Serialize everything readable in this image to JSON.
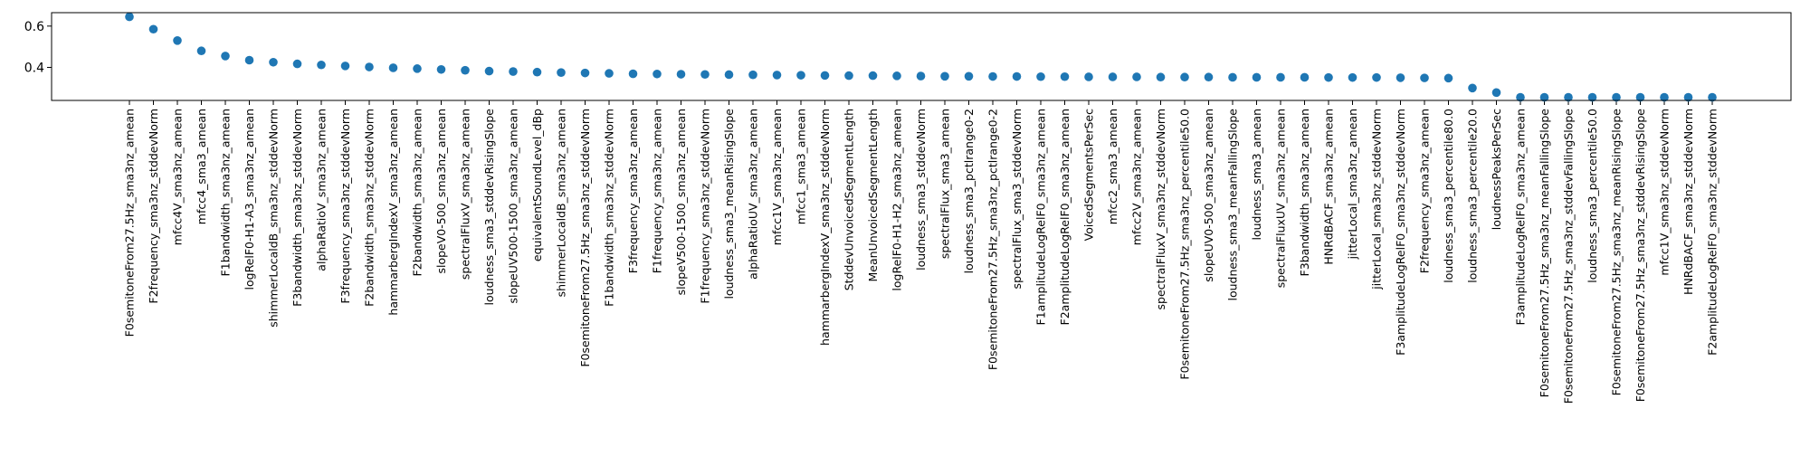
{
  "chart_data": {
    "type": "scatter",
    "title": "",
    "xlabel": "",
    "ylabel": "",
    "grid": false,
    "legend": "none",
    "ylim": [
      0.24,
      0.665
    ],
    "yticks": [
      0.4,
      0.6
    ],
    "ytick_labels": [
      "0.4",
      "0.6"
    ],
    "marker_color": "#1f77b4",
    "categories": [
      "F0semitoneFrom27.5Hz_sma3nz_amean",
      "F2frequency_sma3nz_stddevNorm",
      "mfcc4V_sma3nz_amean",
      "mfcc4_sma3_amean",
      "F1bandwidth_sma3nz_amean",
      "logRelF0-H1-A3_sma3nz_amean",
      "shimmerLocaldB_sma3nz_stddevNorm",
      "F3bandwidth_sma3nz_stddevNorm",
      "alphaRatioV_sma3nz_amean",
      "F3frequency_sma3nz_stddevNorm",
      "F2bandwidth_sma3nz_stddevNorm",
      "hammarbergIndexV_sma3nz_amean",
      "F2bandwidth_sma3nz_amean",
      "slopeV0-500_sma3nz_amean",
      "spectralFluxV_sma3nz_amean",
      "loudness_sma3_stddevRisingSlope",
      "slopeUV500-1500_sma3nz_amean",
      "equivalentSoundLevel_dBp",
      "shimmerLocaldB_sma3nz_amean",
      "F0semitoneFrom27.5Hz_sma3nz_stddevNorm",
      "F1bandwidth_sma3nz_stddevNorm",
      "F3frequency_sma3nz_amean",
      "F1frequency_sma3nz_amean",
      "slopeV500-1500_sma3nz_amean",
      "F1frequency_sma3nz_stddevNorm",
      "loudness_sma3_meanRisingSlope",
      "alphaRatioUV_sma3nz_amean",
      "mfcc1V_sma3nz_amean",
      "mfcc1_sma3_amean",
      "hammarbergIndexV_sma3nz_stddevNorm",
      "StddevUnvoicedSegmentLength",
      "MeanUnvoicedSegmentLength",
      "logRelF0-H1-H2_sma3nz_amean",
      "loudness_sma3_stddevNorm",
      "spectralFlux_sma3_amean",
      "loudness_sma3_pctlrange0-2",
      "F0semitoneFrom27.5Hz_sma3nz_pctlrange0-2",
      "spectralFlux_sma3_stddevNorm",
      "F1amplitudeLogRelF0_sma3nz_amean",
      "F2amplitudeLogRelF0_sma3nz_amean",
      "VoicedSegmentsPerSec",
      "mfcc2_sma3_amean",
      "mfcc2V_sma3nz_amean",
      "spectralFluxV_sma3nz_stddevNorm",
      "F0semitoneFrom27.5Hz_sma3nz_percentile50.0",
      "slopeUV0-500_sma3nz_amean",
      "loudness_sma3_meanFallingSlope",
      "loudness_sma3_amean",
      "spectralFluxUV_sma3nz_amean",
      "F3bandwidth_sma3nz_amean",
      "HNRdBACF_sma3nz_amean",
      "jitterLocal_sma3nz_amean",
      "jitterLocal_sma3nz_stddevNorm",
      "F3amplitudeLogRelF0_sma3nz_stddevNorm",
      "F2frequency_sma3nz_amean",
      "loudness_sma3_percentile80.0",
      "loudness_sma3_percentile20.0",
      "loudnessPeaksPerSec",
      "F3amplitudeLogRelF0_sma3nz_amean",
      "F0semitoneFrom27.5Hz_sma3nz_meanFallingSlope",
      "F0semitoneFrom27.5Hz_sma3nz_stddevFallingSlope",
      "loudness_sma3_percentile50.0",
      "F0semitoneFrom27.5Hz_sma3nz_meanRisingSlope",
      "F0semitoneFrom27.5Hz_sma3nz_stddevRisingSlope",
      "mfcc1V_sma3nz_stddevNorm",
      "HNRdBACF_sma3nz_stddevNorm",
      "F2amplitudeLogRelF0_sma3nz_stddevNorm"
    ],
    "values": [
      0.645,
      0.585,
      0.53,
      0.48,
      0.455,
      0.435,
      0.425,
      0.417,
      0.412,
      0.407,
      0.402,
      0.398,
      0.394,
      0.39,
      0.386,
      0.382,
      0.38,
      0.377,
      0.375,
      0.373,
      0.371,
      0.369,
      0.368,
      0.367,
      0.366,
      0.365,
      0.364,
      0.363,
      0.362,
      0.361,
      0.36,
      0.36,
      0.359,
      0.358,
      0.357,
      0.357,
      0.356,
      0.356,
      0.355,
      0.355,
      0.354,
      0.354,
      0.354,
      0.353,
      0.353,
      0.353,
      0.352,
      0.352,
      0.352,
      0.352,
      0.351,
      0.351,
      0.351,
      0.35,
      0.349,
      0.348,
      0.3,
      0.278,
      0.255,
      0.255,
      0.255,
      0.255,
      0.255,
      0.255,
      0.255,
      0.255,
      0.255
    ]
  }
}
